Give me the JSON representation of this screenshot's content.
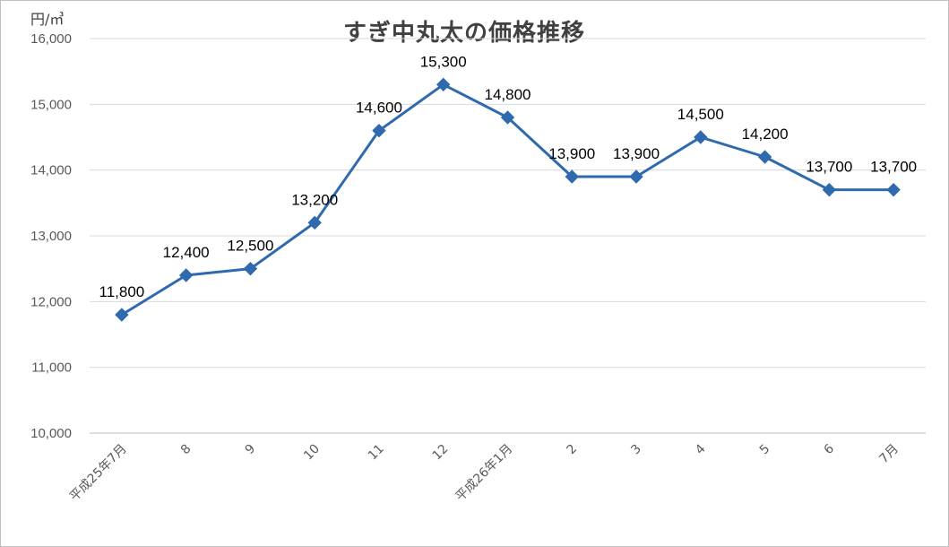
{
  "chart_data": {
    "type": "line",
    "title": "すぎ中丸太の価格推移",
    "ylabel": "円/㎥",
    "xlabel": "",
    "ylim": [
      10000,
      16000
    ],
    "yticks": [
      "10,000",
      "11,000",
      "12,000",
      "13,000",
      "14,000",
      "15,000",
      "16,000"
    ],
    "categories": [
      "平成25年7月",
      "8",
      "9",
      "10",
      "11",
      "12",
      "平成26年1月",
      "2",
      "3",
      "4",
      "5",
      "6",
      "7月"
    ],
    "series": [
      {
        "values": [
          11800,
          12400,
          12500,
          13200,
          14600,
          15300,
          14800,
          13900,
          13900,
          14500,
          14200,
          13700,
          13700
        ],
        "labels": [
          "11,800",
          "12,400",
          "12,500",
          "13,200",
          "14,600",
          "15,300",
          "14,800",
          "13,900",
          "13,900",
          "14,500",
          "14,200",
          "13,700",
          "13,700"
        ],
        "color": "#2e6aad",
        "marker": "diamond"
      }
    ],
    "grid": true,
    "legend": "none"
  }
}
